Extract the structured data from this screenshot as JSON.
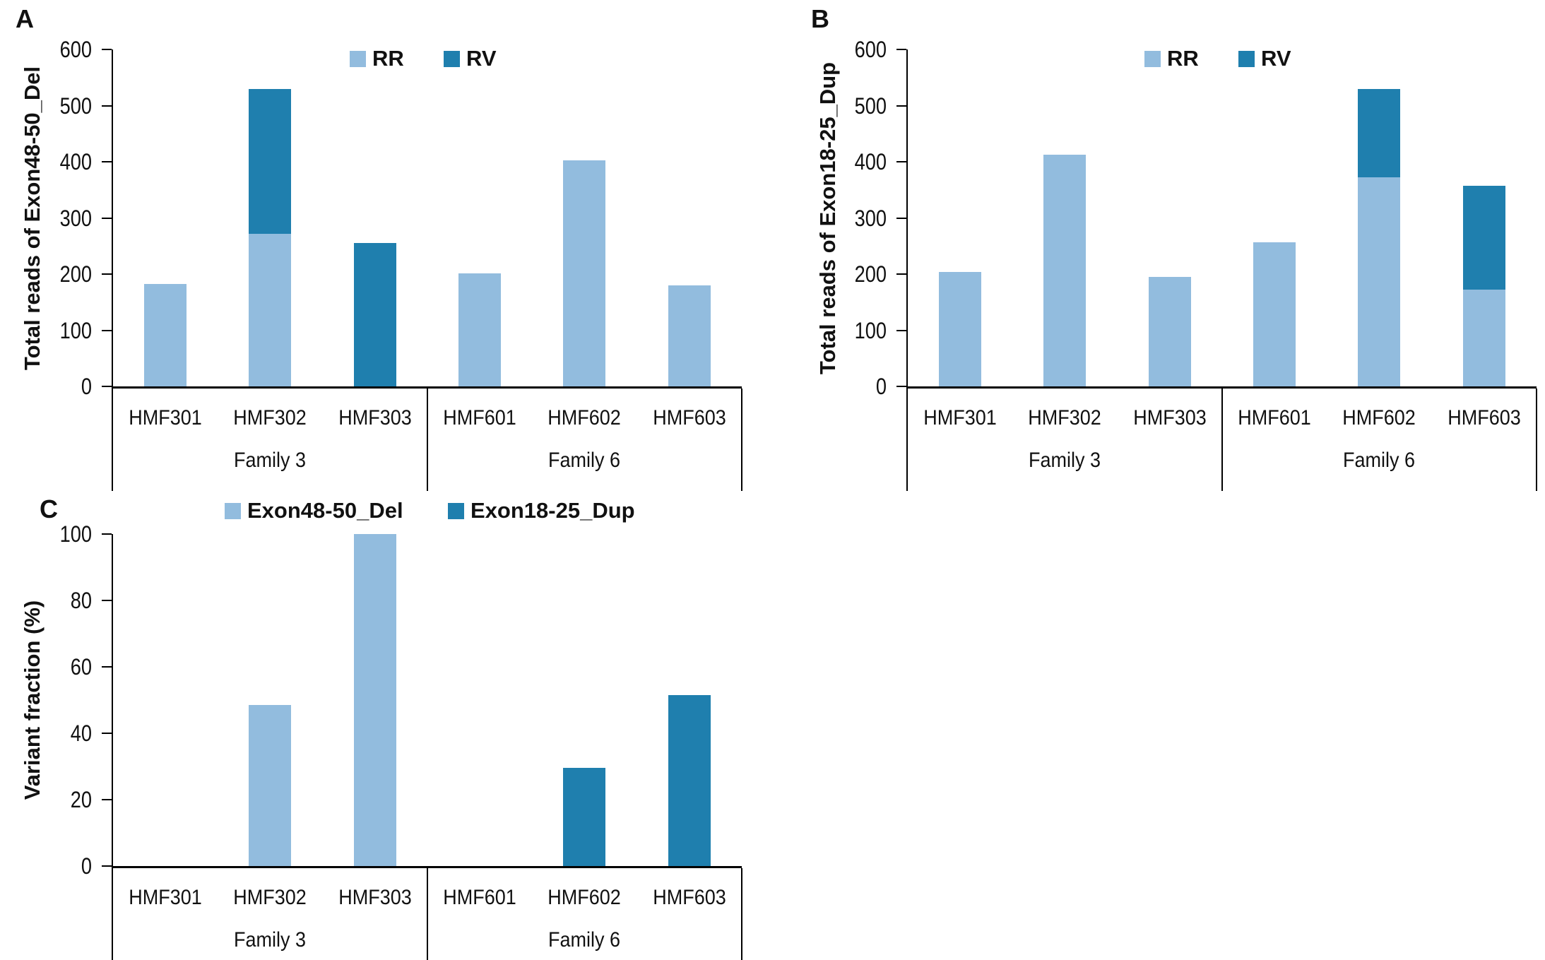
{
  "figure": {
    "background": "#ffffff",
    "text_color": "#111111",
    "axis_color": "#000000",
    "series_colors": {
      "light_blue": "#92BCDE",
      "dark_blue": "#1F7FAE"
    }
  },
  "chart_data": [
    {
      "type": "bar",
      "stacked": true,
      "panel_label": "A",
      "ylabel": "Total reads of Exon48-50_Del",
      "xlabel": "",
      "ylim": [
        0,
        600
      ],
      "ytick_step": 100,
      "yticks": [
        "0",
        "100",
        "200",
        "300",
        "400",
        "500",
        "600"
      ],
      "grid": false,
      "legend_position": "top",
      "categories": [
        "HMF301",
        "HMF302",
        "HMF303",
        "HMF601",
        "HMF602",
        "HMF603"
      ],
      "groups": [
        {
          "label": "Family 3",
          "span": 3
        },
        {
          "label": "Family 6",
          "span": 3
        }
      ],
      "series": [
        {
          "name": "RR",
          "color": "#92BCDE",
          "values": [
            182,
            272,
            0,
            201,
            402,
            180
          ]
        },
        {
          "name": "RV",
          "color": "#1F7FAE",
          "values": [
            0,
            258,
            255,
            0,
            0,
            0
          ]
        }
      ]
    },
    {
      "type": "bar",
      "stacked": true,
      "panel_label": "B",
      "ylabel": "Total reads of Exon18-25_Dup",
      "xlabel": "",
      "ylim": [
        0,
        600
      ],
      "ytick_step": 100,
      "yticks": [
        "0",
        "100",
        "200",
        "300",
        "400",
        "500",
        "600"
      ],
      "grid": false,
      "legend_position": "top",
      "categories": [
        "HMF301",
        "HMF302",
        "HMF303",
        "HMF601",
        "HMF602",
        "HMF603"
      ],
      "groups": [
        {
          "label": "Family 3",
          "span": 3
        },
        {
          "label": "Family 6",
          "span": 3
        }
      ],
      "series": [
        {
          "name": "RR",
          "color": "#92BCDE",
          "values": [
            204,
            412,
            195,
            257,
            372,
            172
          ]
        },
        {
          "name": "RV",
          "color": "#1F7FAE",
          "values": [
            0,
            0,
            0,
            0,
            158,
            185
          ]
        }
      ]
    },
    {
      "type": "bar",
      "stacked": true,
      "panel_label": "C",
      "ylabel": "Variant fraction (%)",
      "xlabel": "",
      "ylim": [
        0,
        100
      ],
      "ytick_step": 20,
      "yticks": [
        "0",
        "20",
        "40",
        "60",
        "80",
        "100"
      ],
      "grid": false,
      "legend_position": "top",
      "categories": [
        "HMF301",
        "HMF302",
        "HMF303",
        "HMF601",
        "HMF602",
        "HMF603"
      ],
      "groups": [
        {
          "label": "Family 3",
          "span": 3
        },
        {
          "label": "Family 6",
          "span": 3
        }
      ],
      "series": [
        {
          "name": "Exon48-50_Del",
          "color": "#92BCDE",
          "values": [
            0,
            48.5,
            100,
            0,
            0,
            0
          ]
        },
        {
          "name": "Exon18-25_Dup",
          "color": "#1F7FAE",
          "values": [
            0,
            0,
            0,
            0,
            29.5,
            51.5
          ]
        }
      ]
    }
  ]
}
